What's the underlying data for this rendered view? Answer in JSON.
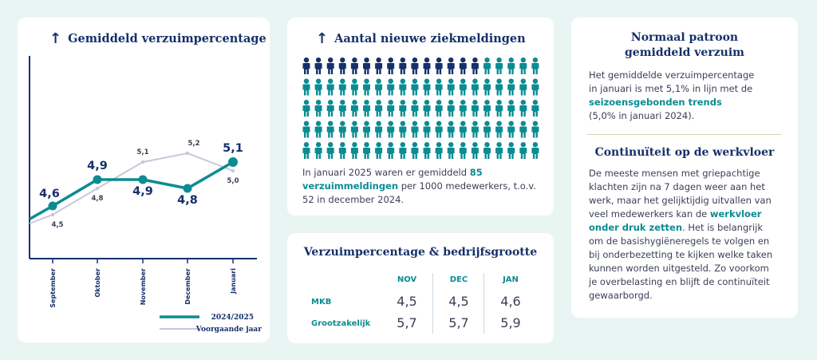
{
  "line_card": {
    "title": "Gemiddeld verzuimpercentage",
    "legend": {
      "current": "2024/2025",
      "previous": "Voorgaande jaar"
    }
  },
  "chart_data": {
    "type": "line",
    "title": "Gemiddeld verzuimpercentage",
    "categories": [
      "September",
      "Oktober",
      "November",
      "December",
      "Januari"
    ],
    "series": [
      {
        "name": "2024/2025",
        "values": [
          4.6,
          4.9,
          4.9,
          4.8,
          5.1
        ],
        "color": "#0a8c92"
      },
      {
        "name": "Voorgaande jaar",
        "values": [
          4.5,
          4.8,
          5.1,
          5.2,
          5.0
        ],
        "color": "#c4c9db"
      }
    ],
    "labels_current": [
      "4,6",
      "4,9",
      "4,9",
      "4,8",
      "5,1"
    ],
    "labels_previous": [
      "4,5",
      "4,8",
      "5,1",
      "5,2",
      "5,0"
    ],
    "ylim": [
      4.0,
      5.6
    ],
    "grid": false,
    "legend_position": "bottom-right"
  },
  "people_card": {
    "title": "Aantal nieuwe ziekmeldingen",
    "total_icons": 100,
    "highlighted": 15,
    "colors": {
      "highlighted": "#16306a",
      "rest": "#0a8c92"
    },
    "text_before": "In januari 2025 waren er gemiddeld ",
    "text_highlight": "85 verzuimmeldingen",
    "text_after": " per 1000 medewerkers, t.o.v. 52 in december 2024."
  },
  "table_card": {
    "title": "Verzuimpercentage & bedrijfsgrootte",
    "columns": [
      "NOV",
      "DEC",
      "JAN"
    ],
    "rows": [
      {
        "label": "MKB",
        "values": [
          "4,5",
          "4,5",
          "4,6"
        ]
      },
      {
        "label": "Grootzakelijk",
        "values": [
          "5,7",
          "5,7",
          "5,9"
        ]
      }
    ]
  },
  "text_card": {
    "section1": {
      "heading_line1": "Normaal patroon",
      "heading_line2": "gemiddeld verzuim",
      "line1": "Het gemiddelde verzuimpercentage",
      "line2": "in januari is met 5,1% in lijn met de",
      "highlight": "seizoensgebonden trends",
      "line4": "(5,0% in januari 2024)."
    },
    "section2": {
      "heading": "Continuïteit op de werkvloer",
      "lines_before": [
        "De meeste mensen met griepachtige",
        "klachten zijn na 7 dagen weer aan het",
        "werk, maar het gelijktijdig uitvallen van"
      ],
      "line_prefix": "veel medewerkers kan de ",
      "highlight1": "werkvloer",
      "highlight2": "onder druk zetten",
      "line_suffix": ". Het is belangrijk",
      "lines_after": [
        "om de basishygiëneregels te volgen en",
        "bij onderbezetting te kijken welke taken",
        "kunnen worden uitgesteld. Zo voorkom",
        "je overbelasting en blijft de continuïteit",
        "gewaarborgd."
      ]
    }
  }
}
